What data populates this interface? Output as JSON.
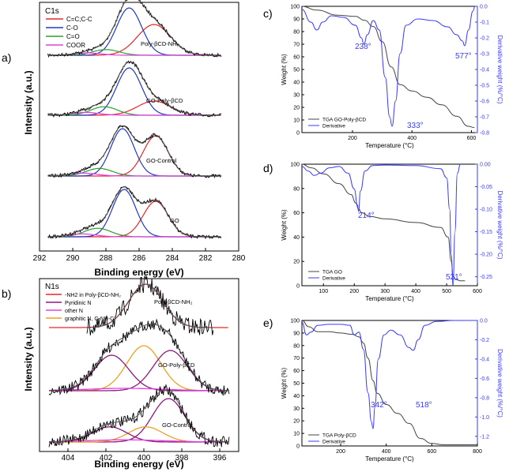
{
  "colors": {
    "red": "#e8262a",
    "blue": "#2038c8",
    "green": "#2ca02c",
    "magenta": "#e040e0",
    "purple": "#8b1a7a",
    "orange": "#f0a020",
    "black": "#000000",
    "grey": "#555555",
    "tga_blue": "#3a3aff"
  },
  "chart_data": [
    {
      "panel": "a)",
      "type": "line",
      "title": "C1s",
      "xlabel": "Binding energy (eV)",
      "ylabel": "Intensity (a.u.)",
      "xlim": [
        292,
        280
      ],
      "xticks": [
        "292",
        "290",
        "288",
        "286",
        "284",
        "282",
        "280"
      ],
      "legend": [
        "C=C;C-C",
        "C-O",
        "C=O",
        "COOR"
      ],
      "stack_labels": [
        "Poly-βCD-NH₂",
        "GO-Poly-βCD",
        "GO-Control",
        "GO"
      ],
      "spectra": [
        {
          "label": "Poly-βCD-NH₂",
          "peaks": [
            {
              "comp": "C=C;C-C",
              "center": 285.1,
              "height": 0.65,
              "width": 1.0
            },
            {
              "comp": "C-O",
              "center": 286.6,
              "height": 1.0,
              "width": 0.75
            },
            {
              "comp": "C=O",
              "center": 288.0,
              "height": 0.12,
              "width": 0.8
            },
            {
              "comp": "COOR",
              "center": 289.1,
              "height": 0.05,
              "width": 0.8
            }
          ]
        },
        {
          "label": "GO-Poly-βCD",
          "peaks": [
            {
              "comp": "C=C;C-C",
              "center": 285.1,
              "height": 0.3,
              "width": 1.0
            },
            {
              "comp": "C-O",
              "center": 286.6,
              "height": 1.0,
              "width": 0.75
            },
            {
              "comp": "C=O",
              "center": 288.1,
              "height": 0.18,
              "width": 0.8
            },
            {
              "comp": "COOR",
              "center": 289.2,
              "height": 0.06,
              "width": 0.8
            }
          ]
        },
        {
          "label": "GO-Control",
          "peaks": [
            {
              "comp": "C=C;C-C",
              "center": 285.0,
              "height": 0.85,
              "width": 0.75
            },
            {
              "comp": "C-O",
              "center": 287.0,
              "height": 1.0,
              "width": 0.7
            },
            {
              "comp": "C=O",
              "center": 288.4,
              "height": 0.16,
              "width": 0.8
            },
            {
              "comp": "COOR",
              "center": 289.3,
              "height": 0.06,
              "width": 0.8
            }
          ]
        },
        {
          "label": "GO",
          "peaks": [
            {
              "comp": "C=C;C-C",
              "center": 285.0,
              "height": 0.75,
              "width": 0.75
            },
            {
              "comp": "C-O",
              "center": 286.9,
              "height": 1.0,
              "width": 0.7
            },
            {
              "comp": "C=O",
              "center": 288.5,
              "height": 0.18,
              "width": 0.8
            },
            {
              "comp": "COOR",
              "center": 289.4,
              "height": 0.06,
              "width": 0.8
            }
          ]
        }
      ]
    },
    {
      "panel": "b)",
      "type": "line",
      "title": "N1s",
      "xlabel": "Binding energy (eV)",
      "ylabel": "Intensity (a.u.)",
      "xlim": [
        405.5,
        395
      ],
      "xticks": [
        "404",
        "402",
        "400",
        "398",
        "396"
      ],
      "legend": [
        "-NH2 in Poly-βCD-NH₂",
        "Pyridinic N",
        "other N",
        "graphitic N, C-NH-C"
      ],
      "stack_labels": [
        "Poly-βCD-NH₂",
        "GO-Poly-βCD",
        "GO-Control"
      ],
      "spectra": [
        {
          "label": "Poly-βCD-NH₂",
          "peaks": [
            {
              "comp": "-NH2",
              "center": 399.9,
              "height": 1.0,
              "width": 0.9
            }
          ]
        },
        {
          "label": "GO-Poly-βCD",
          "peaks": [
            {
              "comp": "graphitic N",
              "center": 400.0,
              "height": 0.95,
              "width": 0.9
            },
            {
              "comp": "Pyridinic N",
              "center": 398.6,
              "height": 0.85,
              "width": 0.9
            },
            {
              "comp": "Pyridinic N",
              "center": 401.7,
              "height": 0.75,
              "width": 0.9
            },
            {
              "comp": "other N",
              "center": 401.0,
              "height": 0.05,
              "width": 2
            }
          ]
        },
        {
          "label": "GO-Control",
          "peaks": [
            {
              "comp": "Pyridinic N",
              "center": 398.7,
              "height": 1.0,
              "width": 0.85
            },
            {
              "comp": "graphitic N",
              "center": 399.9,
              "height": 0.35,
              "width": 0.9
            },
            {
              "comp": "Pyridinic N",
              "center": 401.8,
              "height": 0.35,
              "width": 0.9
            },
            {
              "comp": "other N",
              "center": 401.0,
              "height": 0.05,
              "width": 2
            }
          ]
        }
      ]
    },
    {
      "panel": "c)",
      "type": "line",
      "xlabel": "Temperature (°C)",
      "ylabel": "Weight (%)",
      "y2label": "Derivative weight (%/°C)",
      "xlim": [
        30,
        620
      ],
      "ylim": [
        0,
        100
      ],
      "y2lim": [
        -0.8,
        0.0
      ],
      "xticks": [
        "200",
        "400",
        "600"
      ],
      "yticks": [
        "0",
        "10",
        "20",
        "30",
        "40",
        "50",
        "60",
        "70",
        "80",
        "90",
        "100"
      ],
      "y2ticks": [
        "0.0",
        "-0.1",
        "-0.2",
        "-0.3",
        "-0.4",
        "-0.5",
        "-0.6",
        "-0.7",
        "-0.8"
      ],
      "legend": [
        "TGA GO-Poly-βCD",
        "Derivative"
      ],
      "annotations": [
        "238°",
        "333°",
        "577°"
      ],
      "weight": {
        "x": [
          30,
          80,
          150,
          210,
          240,
          270,
          300,
          330,
          360,
          400,
          450,
          500,
          550,
          590,
          610
        ],
        "y": [
          100,
          97,
          93,
          92,
          89,
          84,
          72,
          52,
          38,
          33,
          28,
          22,
          13,
          5,
          4
        ]
      },
      "derivative": {
        "x": [
          30,
          60,
          80,
          100,
          130,
          170,
          210,
          230,
          238,
          250,
          270,
          290,
          310,
          325,
          333,
          345,
          360,
          380,
          420,
          470,
          520,
          550,
          570,
          577,
          590,
          605,
          612
        ],
        "y": [
          -0.02,
          -0.1,
          -0.15,
          -0.1,
          -0.06,
          -0.07,
          -0.12,
          -0.2,
          -0.24,
          -0.18,
          -0.09,
          -0.15,
          -0.45,
          -0.7,
          -0.76,
          -0.6,
          -0.3,
          -0.12,
          -0.08,
          -0.09,
          -0.13,
          -0.18,
          -0.22,
          -0.25,
          -0.15,
          -0.03,
          0.0
        ]
      }
    },
    {
      "panel": "d)",
      "type": "line",
      "xlabel": "Temperature (°C)",
      "ylabel": "Weight (%)",
      "y2label": "Derivative weight (%/°C)",
      "xlim": [
        30,
        600
      ],
      "ylim": [
        0,
        100
      ],
      "y2lim": [
        -0.27,
        0.0
      ],
      "xticks": [
        "100",
        "200",
        "300",
        "400",
        "500",
        "600"
      ],
      "yticks": [
        "0",
        "20",
        "40",
        "60",
        "80",
        "100"
      ],
      "y2ticks": [
        "0.00",
        "-0.05",
        "-0.10",
        "-0.15",
        "-0.20",
        "-0.25"
      ],
      "legend": [
        "TGA GO",
        "Derivative"
      ],
      "annotations": [
        "214°",
        "521°"
      ],
      "weight": {
        "x": [
          30,
          60,
          100,
          150,
          190,
          205,
          214,
          225,
          250,
          300,
          400,
          480,
          505,
          515,
          521,
          530,
          545,
          560
        ],
        "y": [
          100,
          97,
          92,
          84,
          75,
          68,
          63,
          60,
          57,
          55,
          52,
          48,
          40,
          20,
          8,
          5,
          4,
          4
        ]
      },
      "derivative": {
        "x": [
          30,
          50,
          70,
          90,
          120,
          150,
          180,
          200,
          210,
          214,
          220,
          235,
          260,
          300,
          400,
          480,
          500,
          510,
          515,
          521,
          527,
          535,
          545
        ],
        "y": [
          -0.005,
          -0.015,
          -0.025,
          -0.02,
          -0.008,
          -0.005,
          -0.02,
          -0.055,
          -0.09,
          -0.105,
          -0.06,
          -0.015,
          -0.003,
          -0.002,
          -0.003,
          -0.01,
          -0.03,
          -0.1,
          -0.2,
          -0.27,
          -0.15,
          -0.02,
          0.0
        ]
      }
    },
    {
      "panel": "e)",
      "type": "line",
      "xlabel": "Temperature (°C)",
      "ylabel": "Weight (%)",
      "y2label": "Derivative weight (%/°C)",
      "xlim": [
        30,
        800
      ],
      "ylim": [
        0,
        100
      ],
      "y2lim": [
        -1.3,
        0.0
      ],
      "xticks": [
        "200",
        "400",
        "600",
        "800"
      ],
      "yticks": [
        "0",
        "10",
        "20",
        "30",
        "40",
        "50",
        "60",
        "70",
        "80",
        "90",
        "100"
      ],
      "y2ticks": [
        "0.0",
        "-0.2",
        "-0.4",
        "-0.6",
        "-0.8",
        "-1.0",
        "-1.2"
      ],
      "legend": [
        "TGA Poly-βCD",
        "Derivative"
      ],
      "annotations": [
        "342°",
        "518°"
      ],
      "weight": {
        "x": [
          30,
          60,
          100,
          150,
          200,
          250,
          280,
          300,
          320,
          342,
          360,
          400,
          450,
          500,
          550,
          600,
          650,
          700,
          800
        ],
        "y": [
          100,
          95,
          91,
          91,
          90,
          89,
          87,
          82,
          70,
          52,
          42,
          33,
          26,
          18,
          6,
          2,
          1,
          1,
          1
        ]
      },
      "derivative": {
        "x": [
          30,
          50,
          70,
          100,
          150,
          200,
          240,
          260,
          280,
          300,
          320,
          335,
          342,
          350,
          365,
          390,
          420,
          460,
          500,
          518,
          540,
          570,
          620,
          700,
          800
        ],
        "y": [
          -0.02,
          -0.15,
          -0.12,
          -0.05,
          -0.04,
          -0.04,
          -0.05,
          -0.15,
          -0.12,
          -0.3,
          -0.75,
          -1.05,
          -1.12,
          -0.9,
          -0.4,
          -0.15,
          -0.1,
          -0.15,
          -0.28,
          -0.31,
          -0.2,
          -0.05,
          -0.01,
          0.0,
          0.0
        ]
      }
    }
  ]
}
